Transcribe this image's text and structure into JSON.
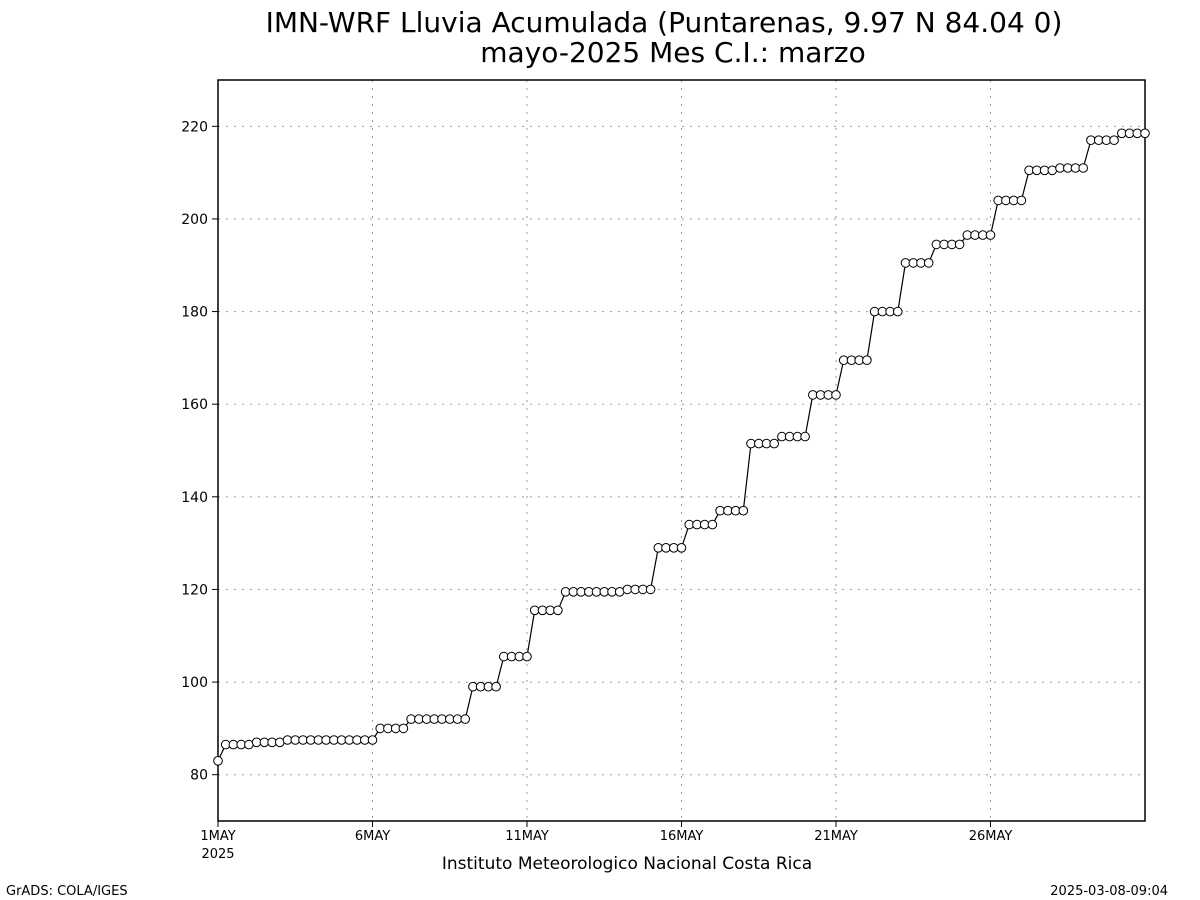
{
  "footer": {
    "left": "GrADS: COLA/IGES",
    "right": "2025-03-08-09:04"
  },
  "chart_data": {
    "type": "line",
    "title": "IMN-WRF  Lluvia Acumulada (Puntarenas, 9.97  N 84.04  0)",
    "subtitle": "mayo-2025 Mes C.I.: marzo",
    "xlabel": "Instituto Meteorologico Nacional Costa Rica",
    "ylabel": "",
    "x_start": "1MAY2025 00Z",
    "x_step_hours": 6,
    "xlim": [
      1,
      31
    ],
    "ylim": [
      70,
      230
    ],
    "yticks": [
      80,
      100,
      120,
      140,
      160,
      180,
      200,
      220
    ],
    "xtick_labels": [
      {
        "day": 1,
        "label": "1MAY",
        "sublabel": "2025"
      },
      {
        "day": 6,
        "label": "6MAY",
        "sublabel": ""
      },
      {
        "day": 11,
        "label": "11MAY",
        "sublabel": ""
      },
      {
        "day": 16,
        "label": "16MAY",
        "sublabel": ""
      },
      {
        "day": 21,
        "label": "21MAY",
        "sublabel": ""
      },
      {
        "day": 26,
        "label": "26MAY",
        "sublabel": ""
      }
    ],
    "grid": true,
    "marker": "open-circle",
    "line_color": "#000000",
    "series": [
      {
        "values": [
          83.0,
          86.5,
          86.5,
          86.5,
          86.5,
          87.0,
          87.0,
          87.0,
          87.0,
          87.5,
          87.5,
          87.5,
          87.5,
          87.5,
          87.5,
          87.5,
          87.5,
          87.5,
          87.5,
          87.5,
          87.5,
          90.0,
          90.0,
          90.0,
          90.0,
          92.0,
          92.0,
          92.0,
          92.0,
          92.0,
          92.0,
          92.0,
          92.0,
          99.0,
          99.0,
          99.0,
          99.0,
          105.5,
          105.5,
          105.5,
          105.5,
          115.5,
          115.5,
          115.5,
          115.5,
          119.5,
          119.5,
          119.5,
          119.5,
          119.5,
          119.5,
          119.5,
          119.5,
          120.0,
          120.0,
          120.0,
          120.0,
          129.0,
          129.0,
          129.0,
          129.0,
          134.0,
          134.0,
          134.0,
          134.0,
          137.0,
          137.0,
          137.0,
          137.0,
          151.5,
          151.5,
          151.5,
          151.5,
          153.0,
          153.0,
          153.0,
          153.0,
          162.0,
          162.0,
          162.0,
          162.0,
          169.5,
          169.5,
          169.5,
          169.5,
          180.0,
          180.0,
          180.0,
          180.0,
          190.5,
          190.5,
          190.5,
          190.5,
          194.5,
          194.5,
          194.5,
          194.5,
          196.5,
          196.5,
          196.5,
          196.5,
          204.0,
          204.0,
          204.0,
          204.0,
          210.5,
          210.5,
          210.5,
          210.5,
          211.0,
          211.0,
          211.0,
          211.0,
          217.0,
          217.0,
          217.0,
          217.0,
          218.5,
          218.5,
          218.5,
          218.5
        ]
      }
    ]
  }
}
